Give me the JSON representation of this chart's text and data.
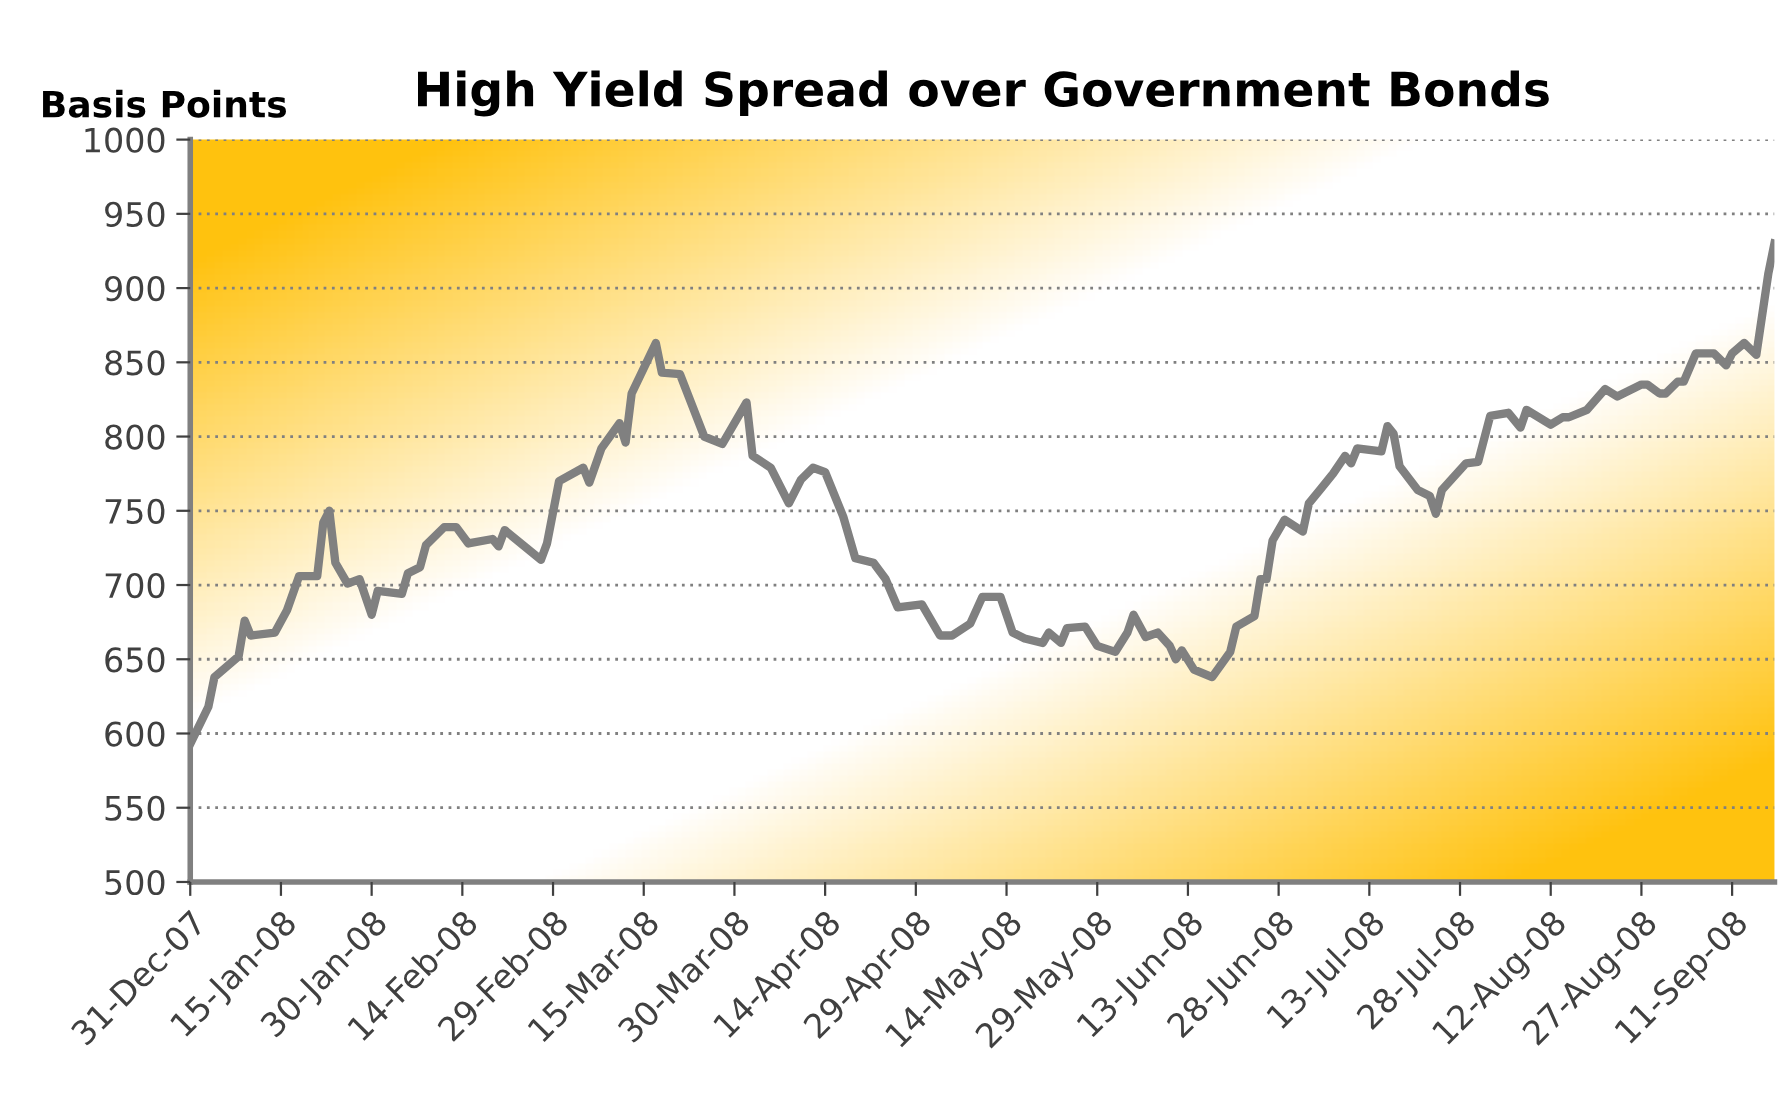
{
  "chart_data": {
    "type": "line",
    "title": "High Yield Spread over Government Bonds",
    "ylabel": "Basis Points",
    "x": [
      "2007-12-31",
      "2008-01-03",
      "2008-01-04",
      "2008-01-08",
      "2008-01-09",
      "2008-01-10",
      "2008-01-14",
      "2008-01-16",
      "2008-01-18",
      "2008-01-21",
      "2008-01-22",
      "2008-01-23",
      "2008-01-24",
      "2008-01-26",
      "2008-01-28",
      "2008-01-30",
      "2008-01-31",
      "2008-02-04",
      "2008-02-05",
      "2008-02-07",
      "2008-02-08",
      "2008-02-11",
      "2008-02-13",
      "2008-02-15",
      "2008-02-19",
      "2008-02-20",
      "2008-02-21",
      "2008-02-27",
      "2008-02-28",
      "2008-03-01",
      "2008-03-05",
      "2008-03-06",
      "2008-03-08",
      "2008-03-11",
      "2008-03-12",
      "2008-03-13",
      "2008-03-17",
      "2008-03-18",
      "2008-03-21",
      "2008-03-25",
      "2008-03-28",
      "2008-04-01",
      "2008-04-02",
      "2008-04-05",
      "2008-04-08",
      "2008-04-10",
      "2008-04-12",
      "2008-04-14",
      "2008-04-17",
      "2008-04-19",
      "2008-04-22",
      "2008-04-24",
      "2008-04-26",
      "2008-04-30",
      "2008-05-03",
      "2008-05-05",
      "2008-05-08",
      "2008-05-10",
      "2008-05-13",
      "2008-05-15",
      "2008-05-17",
      "2008-05-20",
      "2008-05-21",
      "2008-05-23",
      "2008-05-24",
      "2008-05-27",
      "2008-05-29",
      "2008-06-01",
      "2008-06-03",
      "2008-06-04",
      "2008-06-06",
      "2008-06-08",
      "2008-06-10",
      "2008-06-11",
      "2008-06-12",
      "2008-06-14",
      "2008-06-17",
      "2008-06-20",
      "2008-06-21",
      "2008-06-24",
      "2008-06-25",
      "2008-06-26",
      "2008-06-27",
      "2008-06-29",
      "2008-07-02",
      "2008-07-03",
      "2008-07-05",
      "2008-07-07",
      "2008-07-09",
      "2008-07-10",
      "2008-07-11",
      "2008-07-15",
      "2008-07-16",
      "2008-07-17",
      "2008-07-18",
      "2008-07-21",
      "2008-07-23",
      "2008-07-24",
      "2008-07-25",
      "2008-07-29",
      "2008-07-31",
      "2008-08-02",
      "2008-08-05",
      "2008-08-07",
      "2008-08-08",
      "2008-08-12",
      "2008-08-14",
      "2008-08-15",
      "2008-08-18",
      "2008-08-21",
      "2008-08-23",
      "2008-08-27",
      "2008-08-28",
      "2008-08-30",
      "2008-08-31",
      "2008-09-02",
      "2008-09-03",
      "2008-09-05",
      "2008-09-08",
      "2008-09-10",
      "2008-09-11",
      "2008-09-13",
      "2008-09-15",
      "2008-09-17",
      "2008-09-18"
    ],
    "series": [
      {
        "color": "#808080",
        "values": [
          593,
          618,
          638,
          652,
          676,
          666,
          668,
          683,
          706,
          706,
          742,
          750,
          715,
          701,
          704,
          680,
          696,
          694,
          708,
          712,
          727,
          739,
          739,
          728,
          731,
          726,
          737,
          717,
          728,
          770,
          779,
          769,
          792,
          809,
          796,
          829,
          863,
          843,
          842,
          800,
          795,
          823,
          787,
          779,
          755,
          771,
          779,
          776,
          746,
          718,
          715,
          704,
          685,
          687,
          666,
          666,
          674,
          692,
          692,
          668,
          664,
          661,
          668,
          661,
          671,
          672,
          659,
          655,
          668,
          680,
          665,
          668,
          659,
          650,
          656,
          643,
          638,
          655,
          672,
          679,
          704,
          704,
          730,
          744,
          736,
          755,
          765,
          775,
          787,
          782,
          792,
          790,
          807,
          802,
          780,
          764,
          760,
          748,
          764,
          782,
          783,
          814,
          816,
          806,
          818,
          808,
          813,
          813,
          818,
          832,
          827,
          835,
          835,
          829,
          829,
          837,
          837,
          856,
          856,
          848,
          856,
          863,
          855,
          910,
          930
        ]
      }
    ],
    "xlim": [
      "2007-12-31",
      "2008-09-18"
    ],
    "xticks": [
      {
        "value": "2007-12-31",
        "label": "31-Dec-07"
      },
      {
        "value": "2008-01-15",
        "label": "15-Jan-08"
      },
      {
        "value": "2008-01-30",
        "label": "30-Jan-08"
      },
      {
        "value": "2008-02-14",
        "label": "14-Feb-08"
      },
      {
        "value": "2008-02-29",
        "label": "29-Feb-08"
      },
      {
        "value": "2008-03-15",
        "label": "15-Mar-08"
      },
      {
        "value": "2008-03-30",
        "label": "30-Mar-08"
      },
      {
        "value": "2008-04-14",
        "label": "14-Apr-08"
      },
      {
        "value": "2008-04-29",
        "label": "29-Apr-08"
      },
      {
        "value": "2008-05-14",
        "label": "14-May-08"
      },
      {
        "value": "2008-05-29",
        "label": "29-May-08"
      },
      {
        "value": "2008-06-13",
        "label": "13-Jun-08"
      },
      {
        "value": "2008-06-28",
        "label": "28-Jun-08"
      },
      {
        "value": "2008-07-13",
        "label": "13-Jul-08"
      },
      {
        "value": "2008-07-28",
        "label": "28-Jul-08"
      },
      {
        "value": "2008-08-12",
        "label": "12-Aug-08"
      },
      {
        "value": "2008-08-27",
        "label": "27-Aug-08"
      },
      {
        "value": "2008-09-11",
        "label": "11-Sep-08"
      }
    ],
    "ylim": [
      500,
      1000
    ],
    "yticks": [
      500,
      550,
      600,
      650,
      700,
      750,
      800,
      850,
      900,
      950,
      1000
    ],
    "grid": "y",
    "marker": "none",
    "line_style": "solid"
  }
}
